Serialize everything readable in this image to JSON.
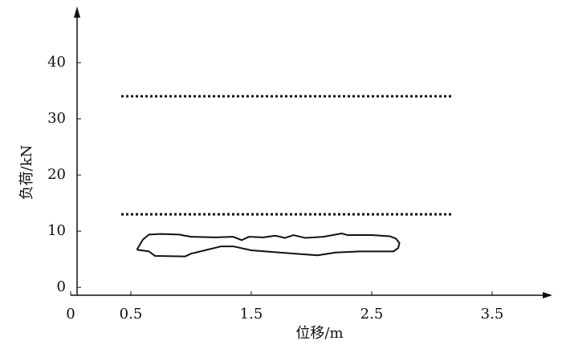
{
  "chart_data": {
    "type": "line",
    "xlabel": "位移/m",
    "ylabel": "负荷/kN",
    "xlim": [
      0,
      4
    ],
    "ylim": [
      -1.4,
      50
    ],
    "xticks": [
      0,
      0.5,
      1.5,
      2.5,
      3.5
    ],
    "yticks": [
      0,
      10,
      20,
      30,
      40
    ],
    "hlines": [
      {
        "y": 34,
        "x": [
          0.42,
          3.17
        ]
      },
      {
        "y": 13,
        "x": [
          0.42,
          3.17
        ]
      }
    ],
    "series": [
      {
        "color": "#111111",
        "x": [
          0.55,
          0.6,
          0.65,
          0.75,
          0.9,
          1.0,
          1.2,
          1.35,
          1.42,
          1.48,
          1.6,
          1.7,
          1.78,
          1.85,
          1.95,
          2.1,
          2.25,
          2.3,
          2.5,
          2.65,
          2.7,
          2.73,
          2.72,
          2.68,
          2.4,
          2.2,
          2.05,
          1.8,
          1.5,
          1.35,
          1.25,
          1.0,
          0.95,
          0.7,
          0.65,
          0.55
        ],
        "values": [
          6.7,
          8.5,
          9.4,
          9.5,
          9.4,
          9.0,
          8.9,
          9.0,
          8.4,
          9.0,
          8.9,
          9.2,
          8.8,
          9.3,
          8.8,
          9.0,
          9.6,
          9.3,
          9.3,
          9.1,
          8.7,
          7.9,
          7.0,
          6.4,
          6.4,
          6.2,
          5.7,
          6.1,
          6.6,
          7.3,
          7.3,
          6.0,
          5.5,
          5.6,
          6.4,
          6.7
        ]
      }
    ]
  }
}
